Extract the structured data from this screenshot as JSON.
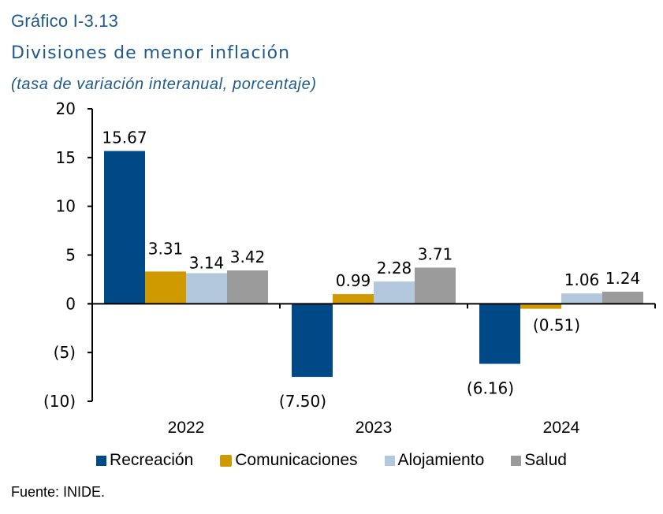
{
  "header": {
    "label": "Gráfico I-3.13",
    "title": "Divisiones de menor inflación",
    "subtitle": "(tasa de variación interanual, porcentaje)"
  },
  "source": "Fuente: INIDE.",
  "chart_data": {
    "type": "bar",
    "title": "Divisiones de menor inflación",
    "subtitle": "(tasa de variación interanual, porcentaje)",
    "xlabel": "",
    "ylabel": "",
    "categories": [
      "2022",
      "2023",
      "2024"
    ],
    "series": [
      {
        "name": "Recreación",
        "color": "#004987",
        "values": [
          15.67,
          -7.5,
          -6.16
        ],
        "labels": [
          "15.67",
          "(7.50)",
          "(6.16)"
        ]
      },
      {
        "name": "Comunicaciones",
        "color": "#cf9a00",
        "values": [
          3.31,
          0.99,
          -0.51
        ],
        "labels": [
          "3.31",
          "0.99",
          "(0.51)"
        ]
      },
      {
        "name": "Alojamiento",
        "color": "#b3c8dc",
        "values": [
          3.14,
          2.28,
          1.06
        ],
        "labels": [
          "3.14",
          "2.28",
          "1.06"
        ]
      },
      {
        "name": "Salud",
        "color": "#9b9b9b",
        "values": [
          3.42,
          3.71,
          1.24
        ],
        "labels": [
          "3.42",
          "3.71",
          "1.24"
        ]
      }
    ],
    "ylim": [
      -10,
      20
    ],
    "yticks": [
      20,
      15,
      10,
      5,
      0,
      -5,
      -10
    ],
    "ytick_labels": [
      "20",
      "15",
      "10",
      "5",
      "0",
      "(5)",
      "(10)"
    ],
    "grid": false,
    "legend_position": "bottom"
  }
}
